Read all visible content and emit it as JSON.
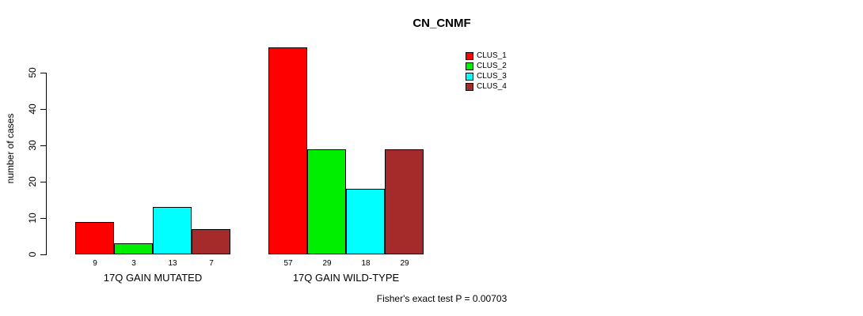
{
  "chart_data": {
    "type": "bar",
    "title": "CN_CNMF",
    "ylabel": "number of cases",
    "xlabel": "",
    "yticks": [
      0,
      10,
      20,
      30,
      40,
      50
    ],
    "ylim": [
      0,
      57
    ],
    "grid": false,
    "legend_position": "top-right",
    "categories": [
      "17Q GAIN MUTATED",
      "17Q GAIN WILD-TYPE"
    ],
    "series": [
      {
        "name": "CLUS_1",
        "color": "#FF0000",
        "values": [
          9,
          57
        ]
      },
      {
        "name": "CLUS_2",
        "color": "#00EE00",
        "values": [
          3,
          29
        ]
      },
      {
        "name": "CLUS_3",
        "color": "#00FFFF",
        "values": [
          13,
          18
        ]
      },
      {
        "name": "CLUS_4",
        "color": "#A52A2A",
        "values": [
          7,
          29
        ]
      }
    ],
    "bar_value_labels": [
      "9",
      "3",
      "13",
      "7",
      "57",
      "29",
      "18",
      "29"
    ],
    "footnote": "Fisher's exact test P = 0.00703"
  }
}
